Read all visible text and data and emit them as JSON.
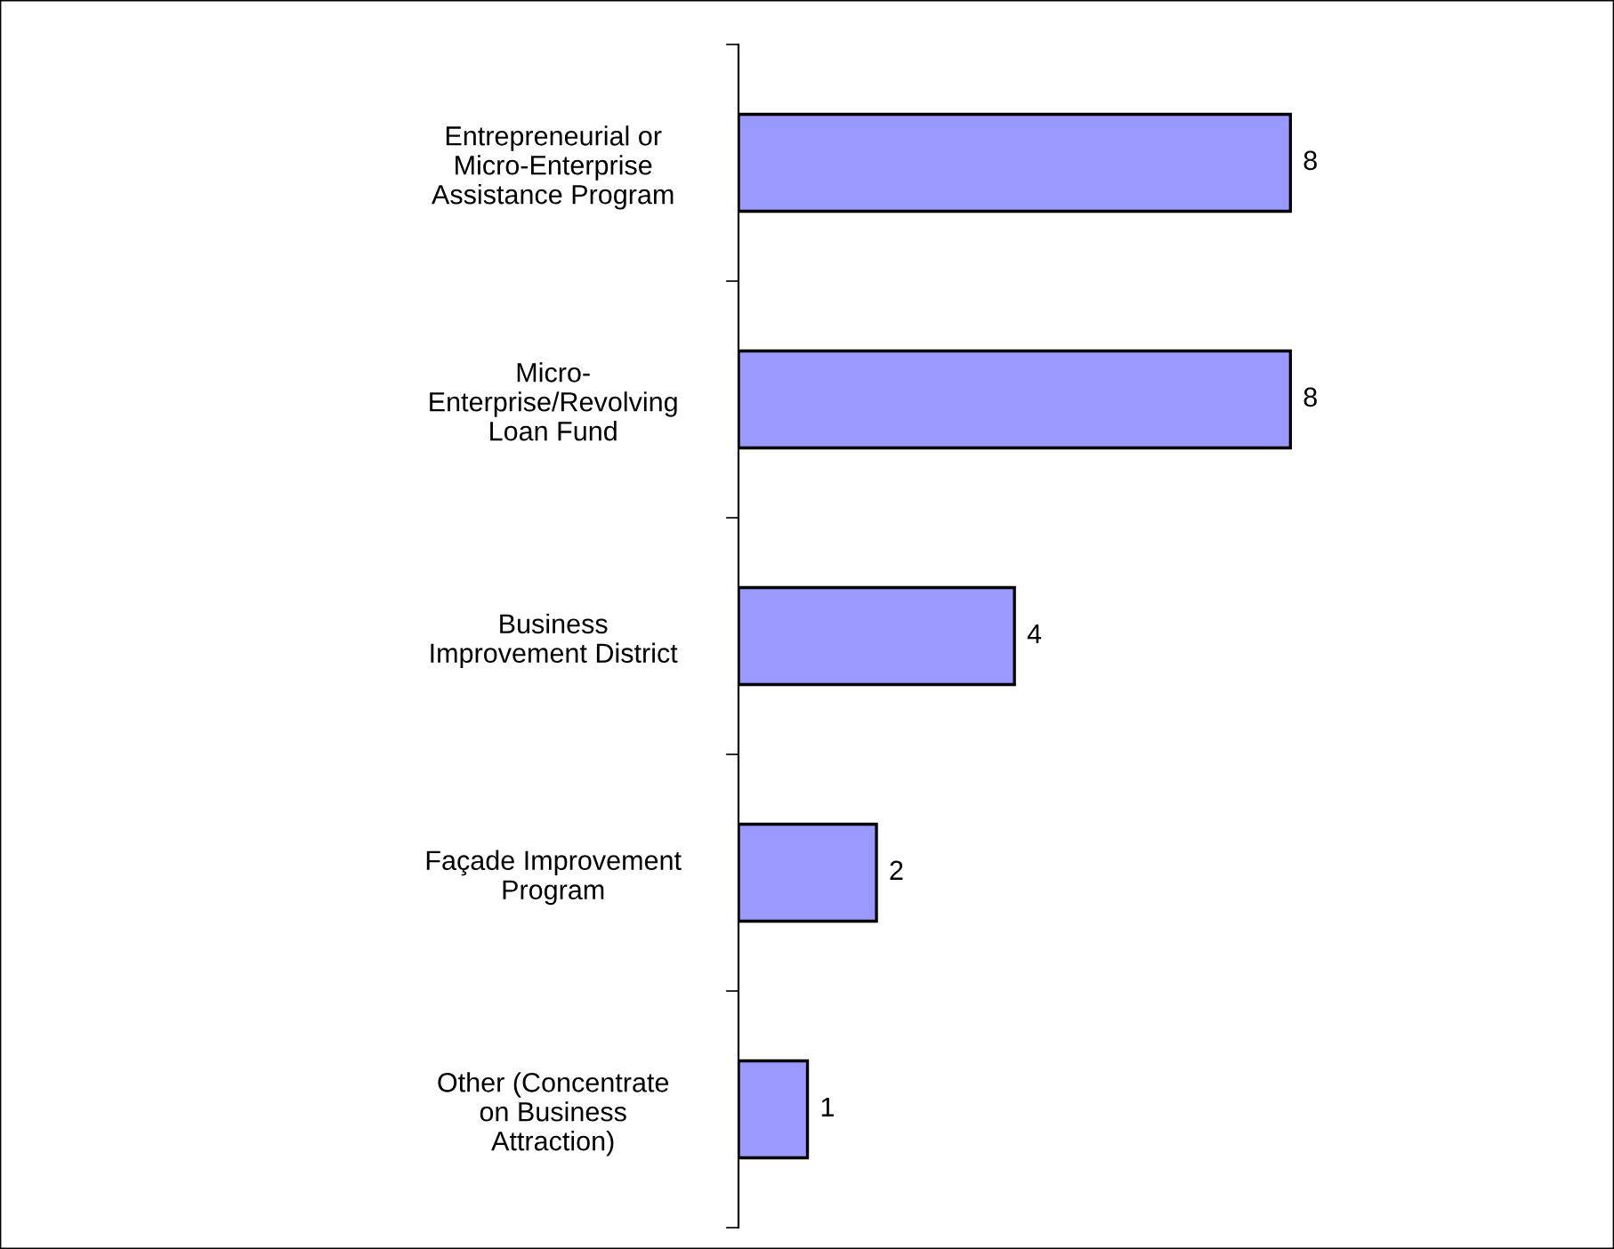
{
  "chart_data": {
    "type": "bar",
    "orientation": "horizontal",
    "categories": [
      "Entrepreneurial or\nMicro-Enterprise\nAssistance Program",
      "Micro-\nEnterprise/Revolving\nLoan Fund",
      "Business\nImprovement District",
      "Façade Improvement\nProgram",
      "Other (Concentrate\non Business\nAttraction)"
    ],
    "values": [
      8,
      8,
      4,
      2,
      1
    ],
    "color": "#9999ff",
    "data_labels": true,
    "tick_labels": "y",
    "grid": false,
    "legend": false
  }
}
